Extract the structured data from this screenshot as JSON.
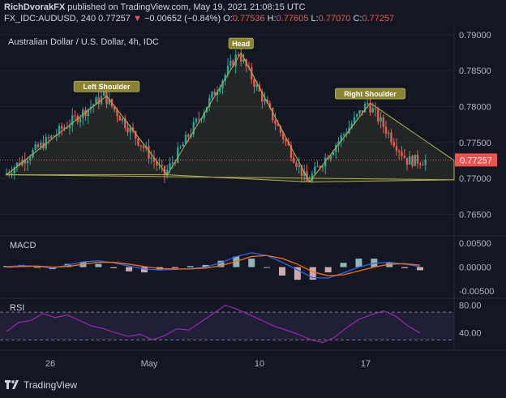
{
  "header": {
    "publisher": "RichDvorakFX",
    "published_text": "published on TradingView.com, May 19, 2021 21:08:15 UTC",
    "symbol": "FX_IDC:AUDUSD, 240",
    "last": "0.77257",
    "change": "−0.00652 (−0.84%)",
    "o_label": "O:",
    "o": "0.77536",
    "h_label": "H:",
    "h": "0.77605",
    "l_label": "L:",
    "l": "0.77070",
    "c_label": "C:",
    "c": "0.77257"
  },
  "footer": {
    "brand": "TradingView"
  },
  "colors": {
    "up": "#26a69a",
    "down": "#ef5350",
    "pattern": "#b5b14a",
    "macd": "#2962ff",
    "signal": "#ff6d00",
    "rsi": "#9c27b0"
  },
  "chart_data": [
    {
      "type": "candlestick",
      "title": "Australian Dollar / U.S. Dollar, 4h, IDC",
      "ylim": [
        0.762,
        0.791
      ],
      "y_ticks": [
        "0.79000",
        "0.78500",
        "0.78000",
        "0.77500",
        "0.77000",
        "0.76500"
      ],
      "x_ticks": [
        "26",
        "May",
        "10",
        "17"
      ],
      "last_price_label": "0.77257",
      "annotations": [
        "Left Shoulder",
        "Head",
        "Right Shoulder"
      ],
      "key_points": [
        {
          "x": 0,
          "y": 0.7705,
          "label": ""
        },
        {
          "x": 38,
          "y": 0.7815,
          "label": "Left Shoulder"
        },
        {
          "x": 61,
          "y": 0.7705,
          "label": ""
        },
        {
          "x": 89,
          "y": 0.7875,
          "label": "Head"
        },
        {
          "x": 115,
          "y": 0.7695,
          "label": ""
        },
        {
          "x": 138,
          "y": 0.7805,
          "label": "Right Shoulder"
        },
        {
          "x": 153,
          "y": 0.7725,
          "label": ""
        }
      ]
    },
    {
      "type": "line",
      "title": "MACD",
      "ylim": [
        -0.0065,
        0.0065
      ],
      "y_ticks": [
        "0.00500",
        "0.00000",
        "-0.00500"
      ],
      "series": [
        {
          "key": "macd",
          "values": [
            0.0001,
            0.0003,
            0.0002,
            -0.0002,
            0.0004,
            0.0011,
            0.0013,
            0.0009,
            0.0002,
            -0.0004,
            -0.0006,
            -0.0005,
            -0.0003,
            0.0,
            0.0009,
            0.0022,
            0.003,
            0.0024,
            0.001,
            -0.0006,
            -0.0022,
            -0.0023,
            -0.0012,
            0.0,
            0.0008,
            0.001,
            0.0006,
            0.0001
          ]
        },
        {
          "key": "signal",
          "values": [
            0.0,
            0.0001,
            0.0002,
            0.0,
            0.0001,
            0.0006,
            0.001,
            0.001,
            0.0006,
            0.0001,
            -0.0003,
            -0.0004,
            -0.0004,
            -0.0002,
            0.0003,
            0.0012,
            0.0022,
            0.0024,
            0.0018,
            0.0006,
            -0.001,
            -0.0018,
            -0.0016,
            -0.0008,
            0.0,
            0.0006,
            0.0007,
            0.0004
          ]
        }
      ]
    },
    {
      "type": "line",
      "title": "RSI",
      "ylim": [
        15,
        90
      ],
      "y_ticks": [
        "80.00",
        "40.00"
      ],
      "bands": [
        70,
        30
      ],
      "series": [
        {
          "key": "rsi",
          "values": [
            42,
            55,
            58,
            68,
            62,
            66,
            58,
            50,
            46,
            40,
            35,
            38,
            30,
            36,
            46,
            44,
            56,
            68,
            80,
            74,
            66,
            58,
            50,
            44,
            38,
            30,
            26,
            34,
            48,
            60,
            66,
            72,
            64,
            50,
            40
          ]
        }
      ]
    }
  ]
}
